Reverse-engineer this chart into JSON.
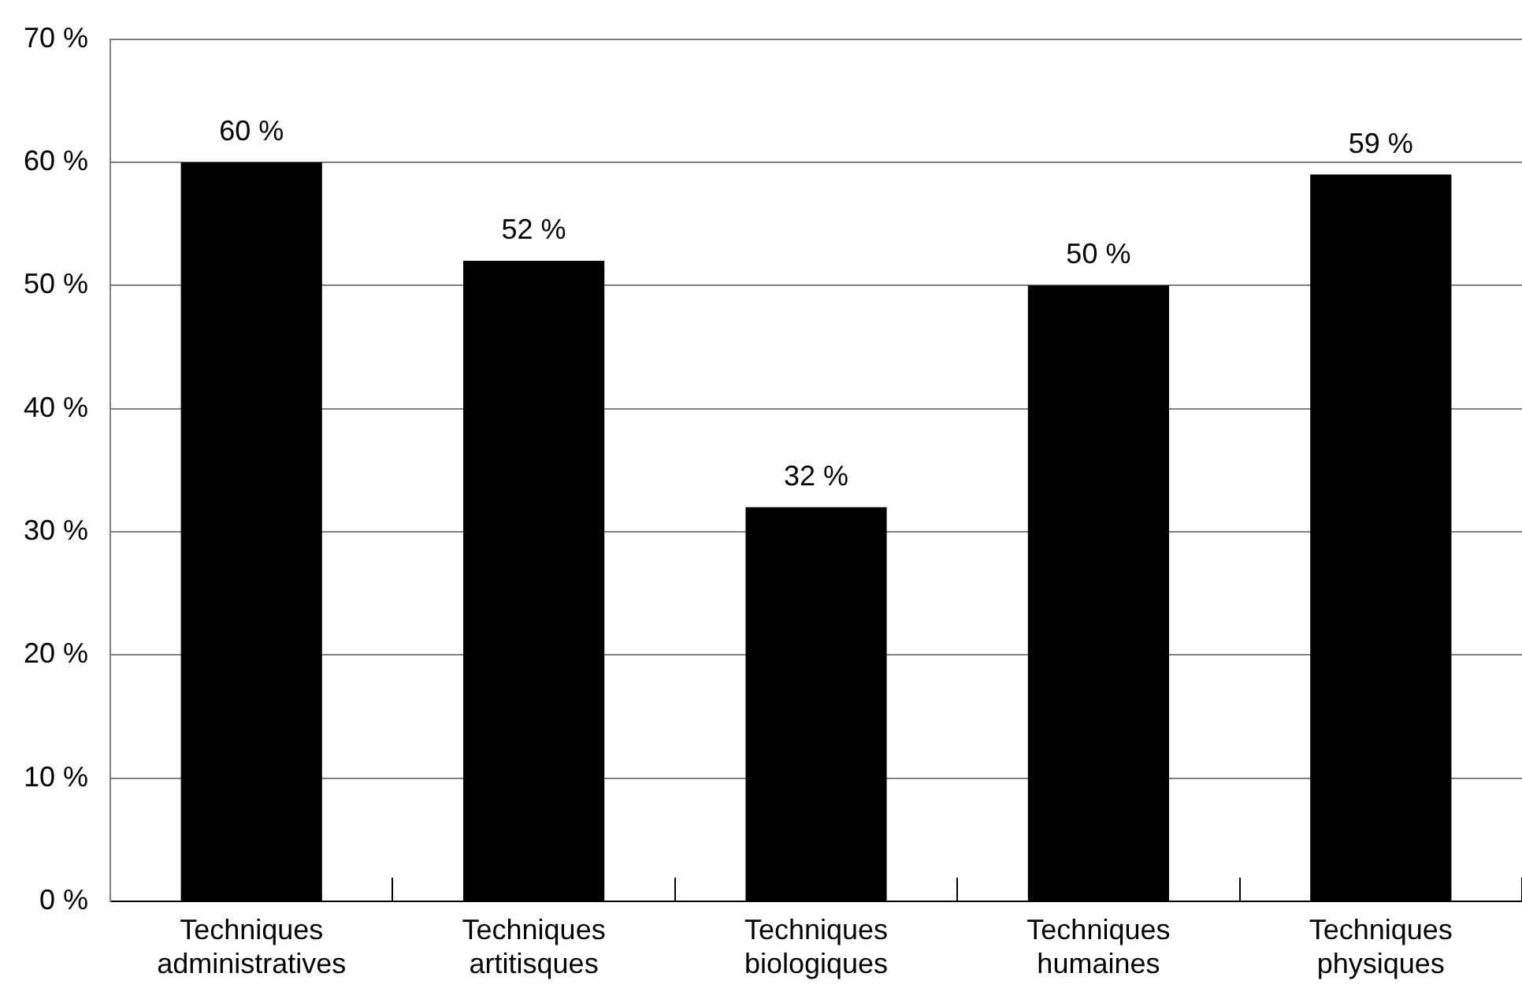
{
  "chart_data": {
    "type": "bar",
    "categories": [
      "Techniques administratives",
      "Techniques artitisques",
      "Techniques biologiques",
      "Techniques humaines",
      "Techniques physiques"
    ],
    "values": [
      60,
      52,
      32,
      50,
      59
    ],
    "color": "#000000",
    "value_labels": [
      "60 %",
      "52 %",
      "32 %",
      "50 %",
      "59 %"
    ],
    "ylim": [
      0,
      70
    ],
    "yticks": [
      {
        "value": 0,
        "label": "0 %"
      },
      {
        "value": 10,
        "label": "10 %"
      },
      {
        "value": 20,
        "label": "20 %"
      },
      {
        "value": 30,
        "label": "30 %"
      },
      {
        "value": 40,
        "label": "40 %"
      },
      {
        "value": 50,
        "label": "50 %"
      },
      {
        "value": 60,
        "label": "60 %"
      },
      {
        "value": 70,
        "label": "70 %"
      }
    ],
    "grid": "y"
  }
}
